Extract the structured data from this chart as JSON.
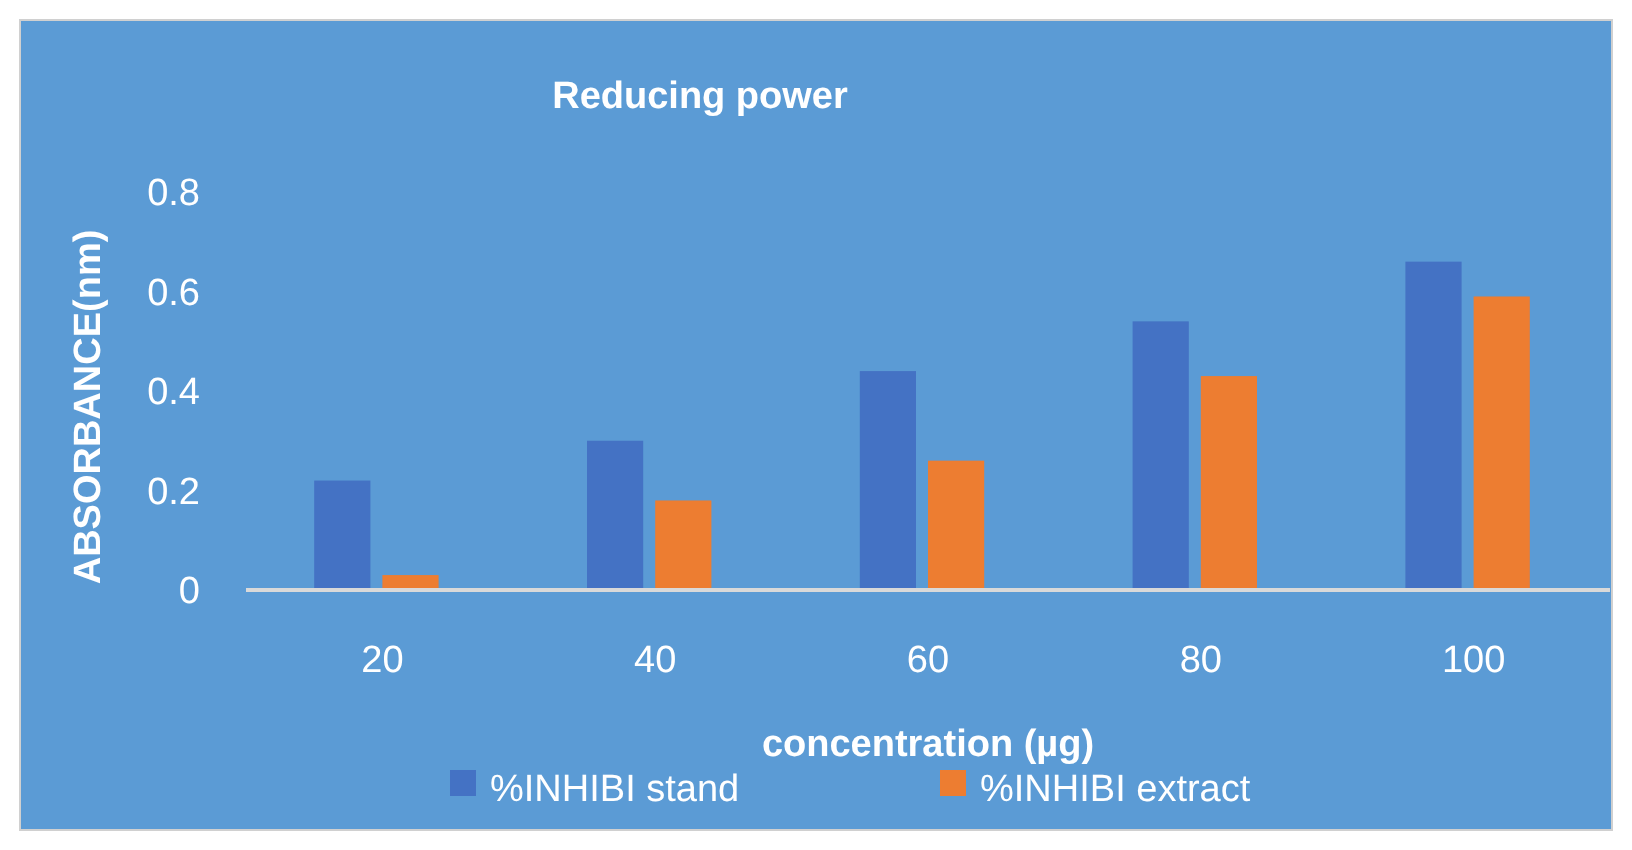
{
  "chart_data": {
    "type": "bar",
    "title": "Reducing power",
    "xlabel": "concentration (µg)",
    "ylabel": "ABSORBANCE(nm)",
    "categories": [
      "20",
      "40",
      "60",
      "80",
      "100"
    ],
    "series": [
      {
        "name": "%INHIBI stand",
        "color": "#4472c4",
        "values": [
          0.22,
          0.3,
          0.44,
          0.54,
          0.66
        ]
      },
      {
        "name": "%INHIBI extract",
        "color": "#ed7d31",
        "values": [
          0.03,
          0.18,
          0.26,
          0.43,
          0.59
        ]
      }
    ],
    "ylim": [
      0,
      0.8
    ],
    "yticks": [
      0,
      0.2,
      0.4,
      0.6,
      0.8
    ],
    "grid": false,
    "legend": "bottom"
  }
}
